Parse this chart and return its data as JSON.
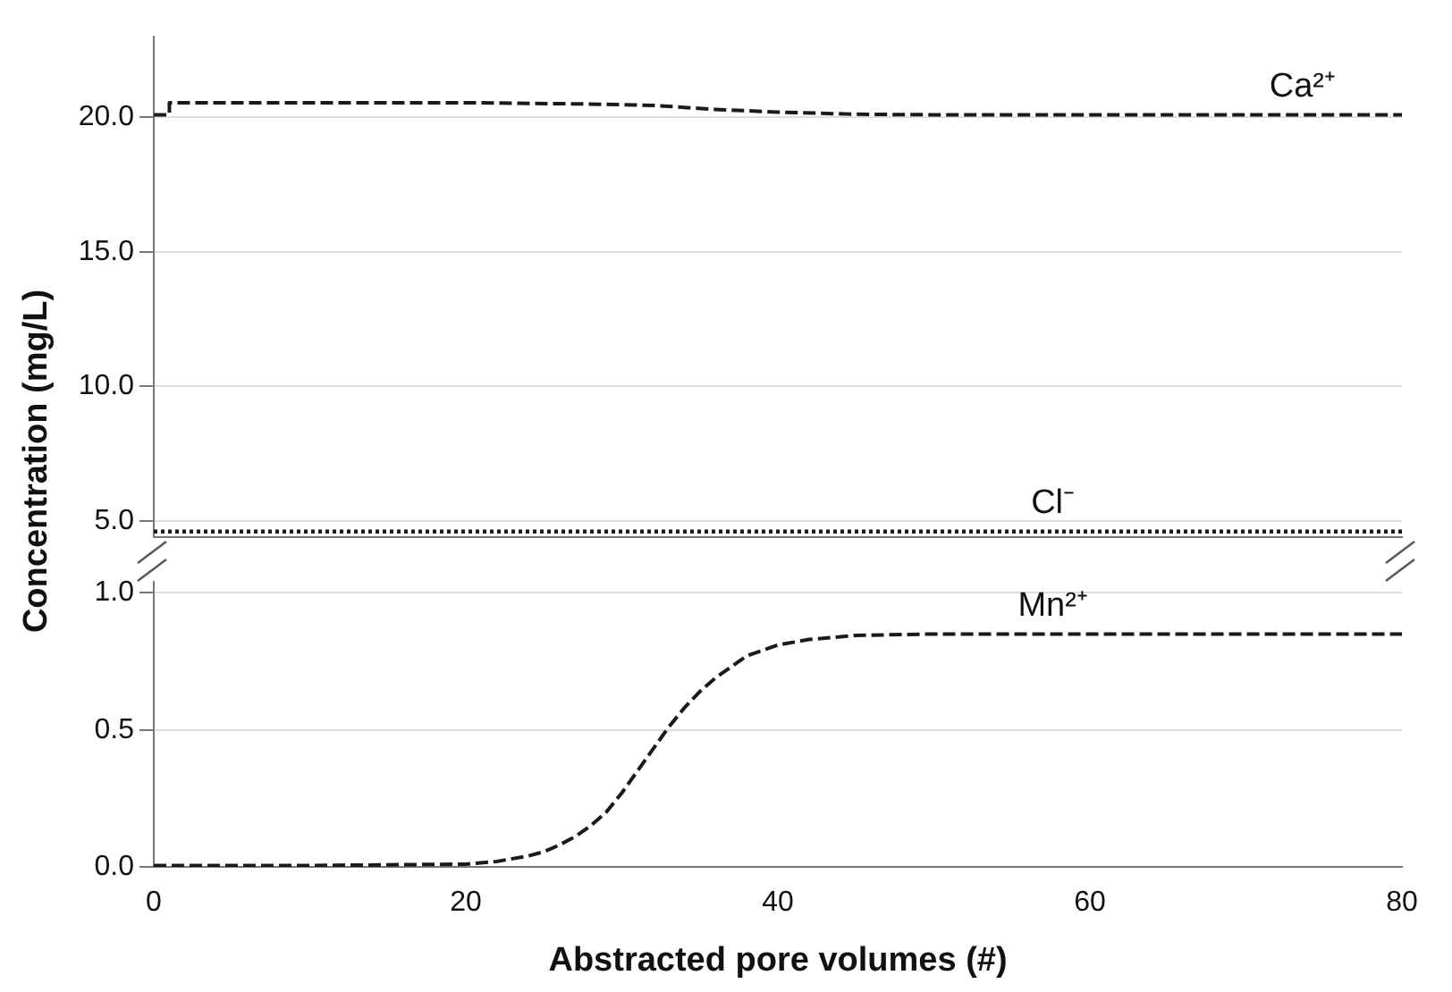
{
  "chart_data": [
    {
      "type": "line",
      "ylabel": "Concentration (mg/L)",
      "xlim": [
        0,
        80
      ],
      "xticks": [
        0,
        20,
        40,
        60,
        80
      ],
      "ylim": [
        4.4,
        23
      ],
      "yticks": [
        {
          "value": 5,
          "label": "5.0"
        },
        {
          "value": 10,
          "label": "10.0"
        },
        {
          "value": 15,
          "label": "15.0"
        },
        {
          "value": 20,
          "label": "20.0"
        }
      ],
      "grid": "y",
      "tick_labels": "y",
      "legend": false,
      "marker": "none",
      "series": [
        {
          "name": "Ca²⁺",
          "color": "#1a1a1a",
          "line_style": "dashed",
          "x": [
            0,
            1,
            1,
            20,
            28,
            32,
            36,
            40,
            45,
            50,
            80
          ],
          "values": [
            20.1,
            20.1,
            20.55,
            20.55,
            20.5,
            20.45,
            20.3,
            20.2,
            20.12,
            20.1,
            20.1
          ]
        },
        {
          "name": "Cl⁻",
          "color": "#1a1a1a",
          "line_style": "dotted",
          "x": [
            0,
            80
          ],
          "values": [
            4.6,
            4.6
          ]
        }
      ]
    },
    {
      "type": "line",
      "xlabel": "Abstracted pore volumes (#)",
      "xlim": [
        0,
        80
      ],
      "xticks": [
        0,
        20,
        40,
        60,
        80
      ],
      "ylim": [
        0,
        1.04
      ],
      "yticks": [
        {
          "value": 0,
          "label": "0.0"
        },
        {
          "value": 0.5,
          "label": "0.5"
        },
        {
          "value": 1,
          "label": "1.0"
        }
      ],
      "grid": "y",
      "legend": false,
      "marker": "none",
      "series": [
        {
          "name": "Mn²⁺",
          "color": "#1a1a1a",
          "line_style": "dashed",
          "x": [
            0,
            10,
            20,
            22,
            24,
            25,
            26,
            27,
            28,
            29,
            30,
            31,
            32,
            33,
            34,
            35,
            36,
            37,
            38,
            39,
            40,
            42,
            45,
            50,
            60,
            80
          ],
          "values": [
            0.005,
            0.005,
            0.01,
            0.02,
            0.04,
            0.055,
            0.08,
            0.11,
            0.15,
            0.2,
            0.27,
            0.35,
            0.43,
            0.51,
            0.58,
            0.64,
            0.69,
            0.73,
            0.77,
            0.79,
            0.81,
            0.83,
            0.845,
            0.85,
            0.85,
            0.85
          ]
        }
      ]
    }
  ]
}
